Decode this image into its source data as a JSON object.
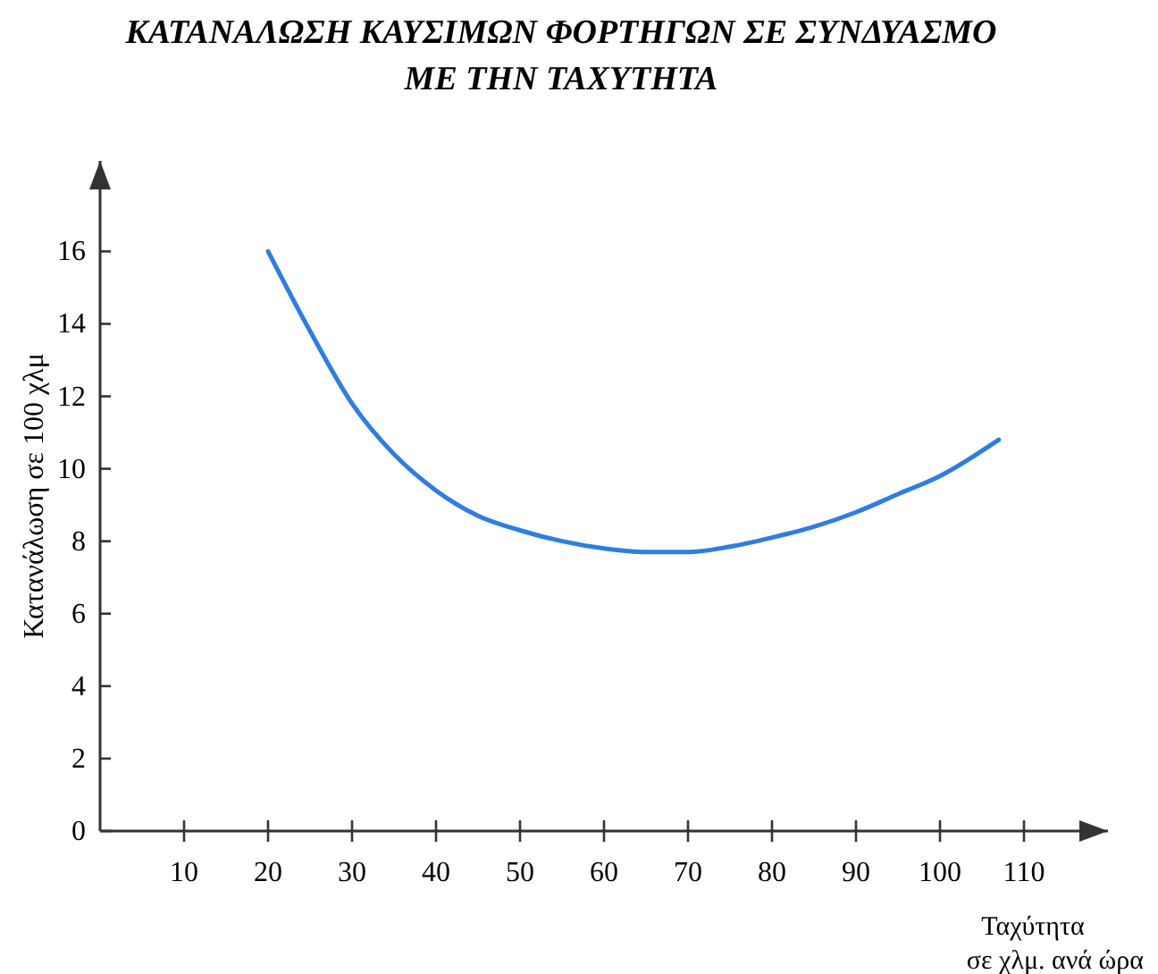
{
  "chart_data": {
    "type": "line",
    "title": "ΚΑΤΑΝΑΛΩΣΗ ΚΑΥΣΙΜΩΝ ΦΟΡΤΗΓΩΝ ΣΕ ΣΥΝΔΥΑΣΜΟ\nΜΕ ΤΗΝ ΤΑΧΥΤΗΤΑ",
    "xlabel": "Ταχύτητα σε χλμ. ανά ώρα",
    "ylabel": "Κατανάλωση σε 100 χλμ",
    "x": [
      20,
      25,
      30,
      35,
      40,
      45,
      50,
      55,
      60,
      65,
      70,
      75,
      80,
      85,
      90,
      95,
      100,
      107
    ],
    "series": [
      {
        "color": "#2f7de1",
        "values": [
          16.0,
          13.8,
          11.8,
          10.4,
          9.4,
          8.7,
          8.3,
          8.0,
          7.8,
          7.7,
          7.7,
          7.85,
          8.1,
          8.4,
          8.8,
          9.3,
          9.8,
          10.8
        ]
      }
    ],
    "xlim": [
      0,
      120
    ],
    "ylim": [
      0,
      18.5
    ],
    "xticks": [
      10,
      20,
      30,
      40,
      50,
      60,
      70,
      80,
      90,
      100,
      110
    ],
    "yticks": [
      0,
      2,
      4,
      6,
      8,
      10,
      12,
      14,
      16
    ],
    "grid": false,
    "marker": "none",
    "line_style": "solid"
  }
}
